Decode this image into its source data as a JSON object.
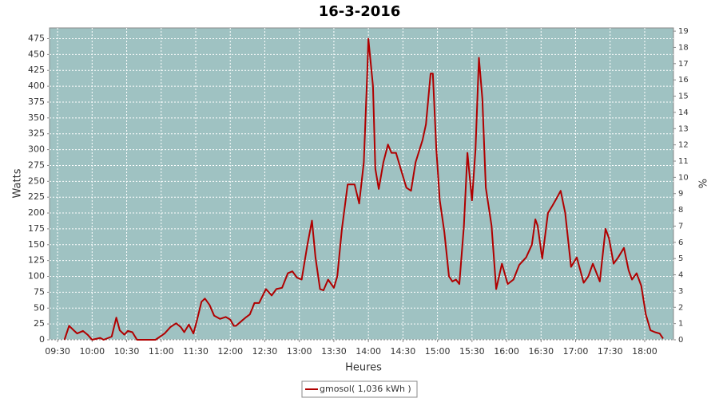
{
  "chart_data": {
    "type": "line",
    "title": "16-3-2016",
    "x_label": "Heures",
    "y_label": "Watts",
    "y2_label": "%",
    "x": [
      "09:36",
      "09:40",
      "09:44",
      "09:47",
      "09:52",
      "09:56",
      "10:00",
      "10:07",
      "10:10",
      "10:17",
      "10:21",
      "10:24",
      "10:28",
      "10:31",
      "10:35",
      "10:39",
      "10:45",
      "10:55",
      "11:03",
      "11:08",
      "11:13",
      "11:17",
      "11:20",
      "11:24",
      "11:28",
      "11:31",
      "11:35",
      "11:38",
      "11:42",
      "11:46",
      "11:51",
      "11:56",
      "12:00",
      "12:03",
      "12:05",
      "12:10",
      "12:14",
      "12:17",
      "12:21",
      "12:25",
      "12:31",
      "12:36",
      "12:40",
      "12:45",
      "12:50",
      "12:54",
      "12:58",
      "13:02",
      "13:07",
      "13:11",
      "13:14",
      "13:18",
      "13:21",
      "13:25",
      "13:30",
      "13:33",
      "13:37",
      "13:42",
      "13:48",
      "13:52",
      "13:56",
      "13:59",
      "14:00",
      "14:04",
      "14:06",
      "14:09",
      "14:13",
      "14:17",
      "14:20",
      "14:24",
      "14:28",
      "14:33",
      "14:37",
      "14:41",
      "14:47",
      "14:50",
      "14:54",
      "14:56",
      "14:59",
      "15:02",
      "15:06",
      "15:10",
      "15:13",
      "15:16",
      "15:19",
      "15:23",
      "15:26",
      "15:30",
      "15:33",
      "15:36",
      "15:39",
      "15:42",
      "15:47",
      "15:51",
      "15:56",
      "16:01",
      "16:06",
      "16:11",
      "16:17",
      "16:22",
      "16:25",
      "16:27",
      "16:31",
      "16:36",
      "16:40",
      "16:44",
      "16:47",
      "16:51",
      "16:56",
      "17:01",
      "17:07",
      "17:11",
      "17:15",
      "17:21",
      "17:26",
      "17:29",
      "17:33",
      "17:37",
      "17:42",
      "17:46",
      "17:49",
      "17:53",
      "17:57",
      "18:01",
      "18:05",
      "18:09",
      "18:13",
      "18:16"
    ],
    "series": [
      {
        "name": "gmosol( 1,036 kWh )",
        "color": "#b00000",
        "values": [
          0,
          22,
          15,
          10,
          14,
          8,
          0,
          3,
          0,
          5,
          35,
          15,
          8,
          14,
          12,
          0,
          0,
          0,
          10,
          20,
          26,
          20,
          12,
          24,
          10,
          30,
          60,
          65,
          55,
          38,
          33,
          36,
          32,
          22,
          22,
          30,
          36,
          40,
          58,
          58,
          80,
          70,
          80,
          82,
          105,
          108,
          98,
          95,
          150,
          188,
          130,
          80,
          78,
          95,
          82,
          100,
          175,
          245,
          245,
          215,
          280,
          420,
          475,
          400,
          270,
          238,
          280,
          308,
          295,
          295,
          270,
          240,
          235,
          280,
          315,
          340,
          420,
          420,
          300,
          220,
          170,
          100,
          92,
          95,
          88,
          180,
          295,
          220,
          300,
          445,
          380,
          240,
          180,
          80,
          120,
          88,
          95,
          118,
          130,
          150,
          190,
          180,
          128,
          200,
          212,
          225,
          235,
          200,
          115,
          130,
          90,
          100,
          120,
          92,
          175,
          160,
          120,
          130,
          145,
          110,
          95,
          105,
          85,
          40,
          15,
          12,
          10,
          2
        ]
      }
    ],
    "xlim": [
      "09:23",
      "18:25"
    ],
    "xticks": [
      "09:30",
      "10:00",
      "10:30",
      "11:00",
      "11:30",
      "12:00",
      "12:30",
      "13:00",
      "13:30",
      "14:00",
      "14:30",
      "15:00",
      "15:30",
      "16:00",
      "16:30",
      "17:00",
      "17:30",
      "18:00"
    ],
    "ylim": [
      0,
      492
    ],
    "yticks": [
      0,
      25,
      50,
      75,
      100,
      125,
      150,
      175,
      200,
      225,
      250,
      275,
      300,
      325,
      350,
      375,
      400,
      425,
      450,
      475
    ],
    "y2lim": [
      0,
      19.2
    ],
    "y2ticks": [
      0,
      1,
      2,
      3,
      4,
      5,
      6,
      7,
      8,
      9,
      10,
      11,
      12,
      13,
      14,
      15,
      16,
      17,
      18,
      19
    ],
    "grid": true,
    "legend": "bottom"
  }
}
